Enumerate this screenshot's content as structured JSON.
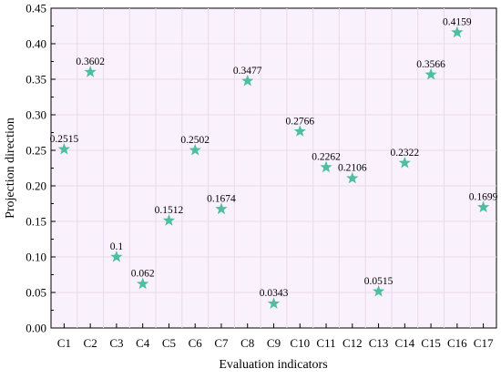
{
  "chart_data": {
    "type": "scatter",
    "categories": [
      "C1",
      "C2",
      "C3",
      "C4",
      "C5",
      "C6",
      "C7",
      "C8",
      "C9",
      "C10",
      "C11",
      "C12",
      "C13",
      "C14",
      "C15",
      "C16",
      "C17"
    ],
    "values": [
      0.2515,
      0.3602,
      0.1,
      0.062,
      0.1512,
      0.2502,
      0.1674,
      0.3477,
      0.0343,
      0.2766,
      0.2262,
      0.2106,
      0.0515,
      0.2322,
      0.3566,
      0.4159,
      0.1699
    ],
    "data_labels": [
      "0.2515",
      "0.3602",
      "0.1",
      "0.062",
      "0.1512",
      "0.2502",
      "0.1674",
      "0.3477",
      "0.0343",
      "0.2766",
      "0.2262",
      "0.2106",
      "0.0515",
      "0.2322",
      "0.3566",
      "0.4159",
      "0.1699"
    ],
    "xlabel": "Evaluation indicators",
    "ylabel": "Projection direction",
    "ylim": [
      0,
      0.45
    ],
    "yticks": [
      0,
      0.05,
      0.1,
      0.15,
      0.2,
      0.25,
      0.3,
      0.35,
      0.4,
      0.45
    ],
    "ytick_labels": [
      "0.00",
      "0.05",
      "0.10",
      "0.15",
      "0.20",
      "0.25",
      "0.30",
      "0.35",
      "0.40",
      "0.45"
    ],
    "marker": "star",
    "grid": true,
    "colors": {
      "marker": "#4dbfa0",
      "plot_background": "#f9f1fb",
      "grid": "#ead9ee",
      "axis": "#000000"
    }
  }
}
